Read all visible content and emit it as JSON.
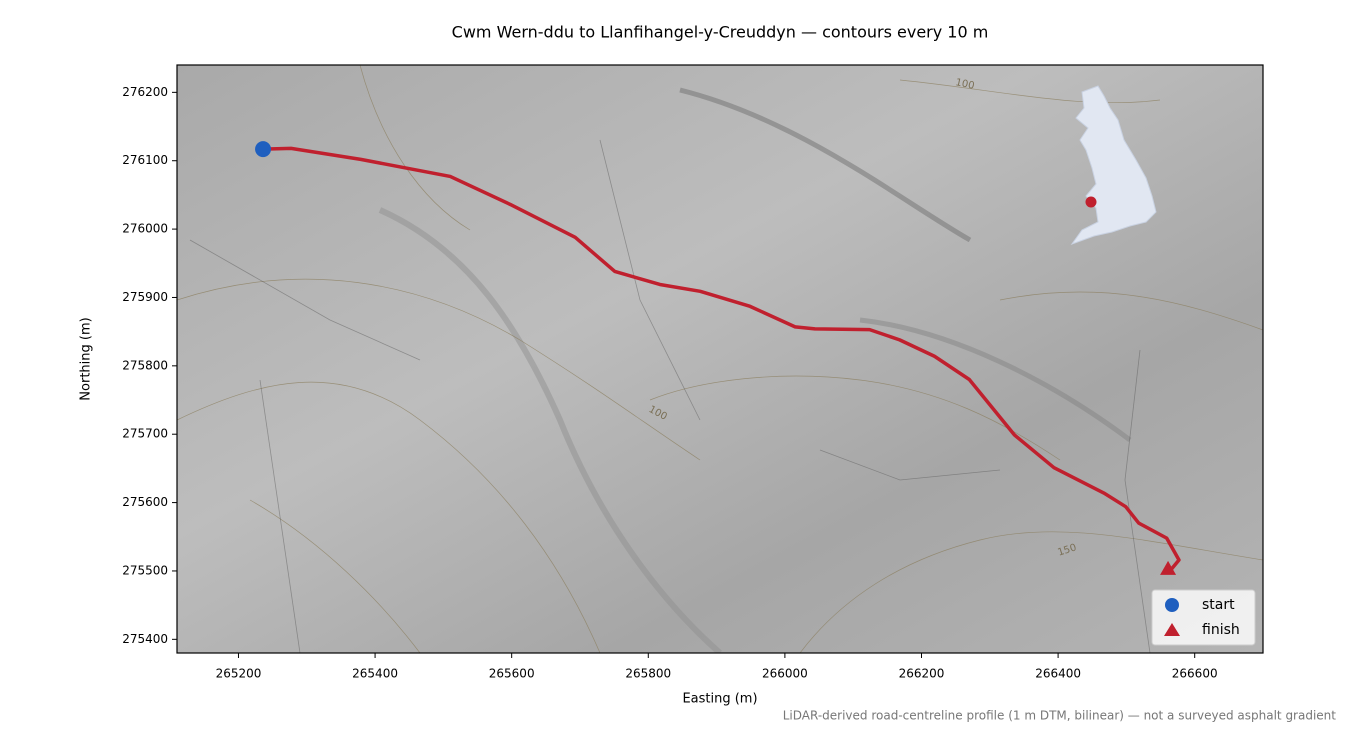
{
  "chart_data": {
    "type": "line",
    "title": "Cwm Wern-ddu to Llanfihangel-y-Creuddyn — contours every 10 m",
    "xlabel": "Easting (m)",
    "ylabel": "Northing (m)",
    "note": "LiDAR-derived road-centreline profile (1 m DTM, bilinear) — not a surveyed asphalt gradient",
    "contour_labels": [
      "100",
      "100",
      "150"
    ],
    "xlim": [
      265110,
      266700
    ],
    "ylim": [
      275380,
      276240
    ],
    "xticks": [
      265200,
      265400,
      265600,
      265800,
      266000,
      266200,
      266400,
      266600
    ],
    "yticks": [
      275400,
      275500,
      275600,
      275700,
      275800,
      275900,
      276000,
      276100,
      276200
    ],
    "legend": "lower right",
    "route": {
      "color": "#c0202e",
      "x": [
        265236,
        265277,
        265379,
        265510,
        265598,
        265693,
        265751,
        265817,
        265876,
        265949,
        266015,
        266044,
        266124,
        266168,
        266219,
        266270,
        266336,
        266394,
        266467,
        266499,
        266518,
        266559,
        266577,
        266562
      ],
      "y": [
        276117,
        276118,
        276102,
        276077,
        276036,
        275988,
        275938,
        275919,
        275909,
        275887,
        275857,
        275854,
        275853,
        275838,
        275814,
        275780,
        275699,
        275651,
        275614,
        275594,
        275570,
        275548,
        275516,
        275498
      ]
    },
    "markers": [
      {
        "name": "start",
        "color": "#1f5fbf",
        "marker": "circle",
        "x": 265236,
        "y": 276117
      },
      {
        "name": "finish",
        "color": "#c0202e",
        "marker": "triangle",
        "x": 266561,
        "y": 275503
      }
    ]
  }
}
